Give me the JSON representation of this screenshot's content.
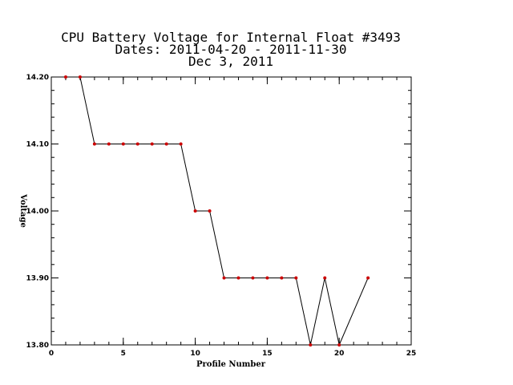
{
  "chart_data": {
    "type": "line",
    "title_lines": [
      "CPU Battery Voltage for Internal Float #3493",
      "Dates:  2011-04-20 -  2011-11-30",
      "Dec  3, 2011"
    ],
    "xlabel": "Profile Number",
    "ylabel": "Voltage",
    "xlim": [
      0,
      25
    ],
    "ylim": [
      13.8,
      14.2
    ],
    "x_ticks": [
      0,
      5,
      10,
      15,
      20,
      25
    ],
    "y_ticks": [
      13.8,
      13.9,
      14.0,
      14.1,
      14.2
    ],
    "x_tick_labels": [
      "0",
      "5",
      "10",
      "15",
      "20",
      "25"
    ],
    "y_tick_labels": [
      "13.80",
      "13.90",
      "14.00",
      "14.10",
      "14.20"
    ],
    "grid": false,
    "series": [
      {
        "x": [
          1,
          2,
          3,
          4,
          5,
          6,
          7,
          8,
          9,
          10,
          11,
          12,
          13,
          14,
          15,
          16,
          17,
          18,
          19,
          20,
          22
        ],
        "y": [
          14.2,
          14.2,
          14.1,
          14.1,
          14.1,
          14.1,
          14.1,
          14.1,
          14.1,
          14.0,
          14.0,
          13.9,
          13.9,
          13.9,
          13.9,
          13.9,
          13.9,
          13.8,
          13.9,
          13.8,
          13.9
        ],
        "line_color": "#000000",
        "marker_color": "#cc0000"
      }
    ]
  }
}
